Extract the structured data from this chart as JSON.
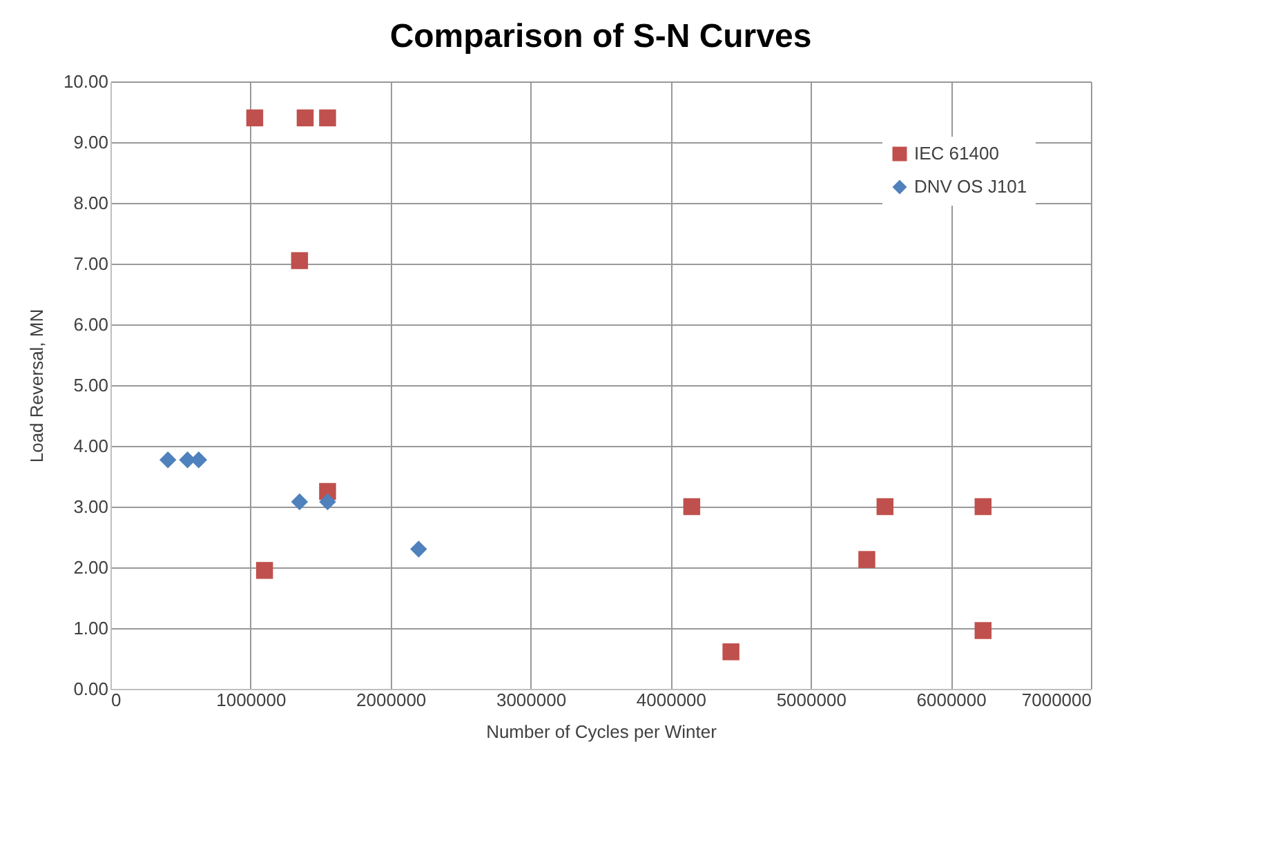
{
  "chart_data": {
    "type": "scatter",
    "title": "Comparison of S-N Curves",
    "xlabel": "Number of Cycles per Winter",
    "ylabel": "Load Reversal, MN",
    "xlim": [
      0,
      7000000
    ],
    "xticks": [
      0,
      1000000,
      2000000,
      3000000,
      4000000,
      5000000,
      6000000,
      7000000
    ],
    "ylim": [
      0,
      10
    ],
    "yticks": [
      {
        "value": 0,
        "label": "0.00"
      },
      {
        "value": 1,
        "label": "1.00"
      },
      {
        "value": 2,
        "label": "2.00"
      },
      {
        "value": 3,
        "label": "3.00"
      },
      {
        "value": 4,
        "label": "4.00"
      },
      {
        "value": 5,
        "label": "5.00"
      },
      {
        "value": 6,
        "label": "6.00"
      },
      {
        "value": 7,
        "label": "7.00"
      },
      {
        "value": 8,
        "label": "8.00"
      },
      {
        "value": 9,
        "label": "9.00"
      },
      {
        "value": 10,
        "label": "10.00"
      }
    ],
    "grid": true,
    "legend": "top right",
    "series": [
      {
        "name": "IEC 61400",
        "color": "#c0504d",
        "marker": "square",
        "x": [
          1030000,
          1390000,
          1550000,
          1350000,
          1550000,
          1100000,
          4150000,
          5530000,
          6230000,
          5400000,
          6230000,
          4430000
        ],
        "values": [
          9.4,
          9.4,
          9.4,
          7.05,
          3.25,
          1.95,
          3.0,
          3.0,
          3.0,
          2.13,
          0.96,
          0.61
        ]
      },
      {
        "name": "DNV OS J101",
        "color": "#4f81bd",
        "marker": "diamond",
        "x": [
          410000,
          550000,
          630000,
          1350000,
          1550000,
          2200000
        ],
        "values": [
          3.77,
          3.77,
          3.77,
          3.08,
          3.08,
          2.3
        ]
      }
    ]
  }
}
